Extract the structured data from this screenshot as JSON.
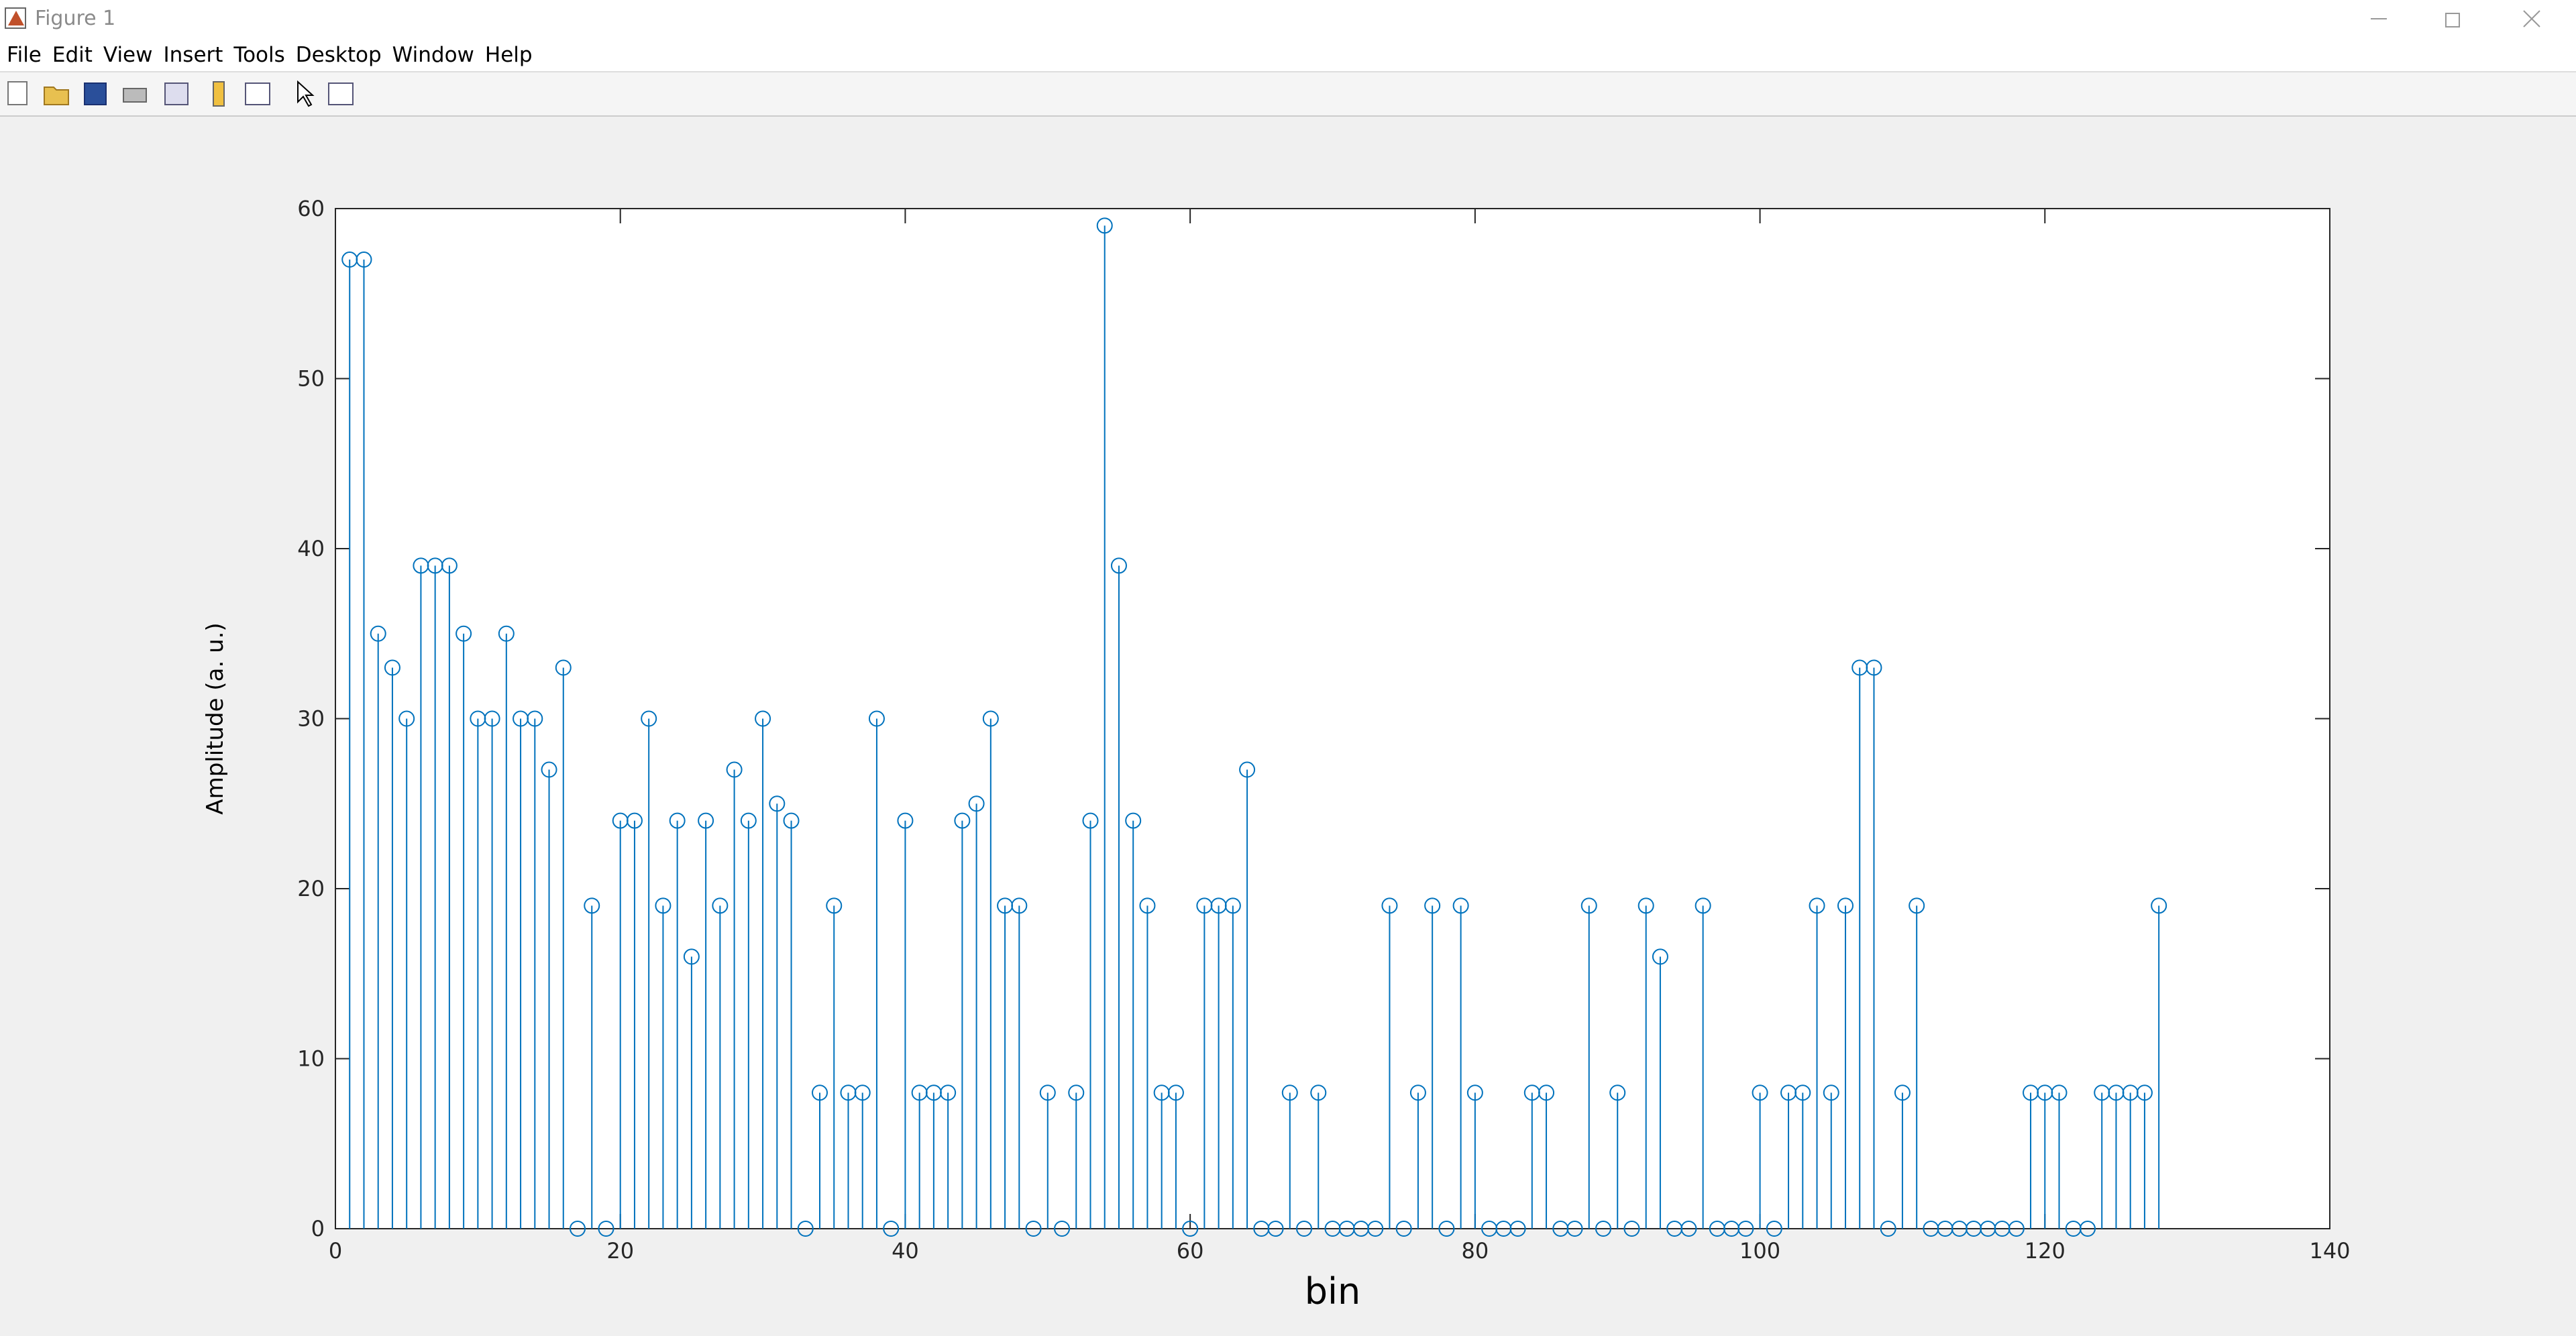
{
  "window": {
    "title": "Figure 1",
    "menu": [
      "File",
      "Edit",
      "View",
      "Insert",
      "Tools",
      "Desktop",
      "Window",
      "Help"
    ]
  },
  "chart_data": {
    "type": "stem",
    "xlabel": "bin",
    "ylabel": "Amplitude (a. u.)",
    "color": "#0072bd",
    "x": [
      1,
      2,
      3,
      4,
      5,
      6,
      7,
      8,
      9,
      10,
      11,
      12,
      13,
      14,
      15,
      16,
      17,
      18,
      19,
      20,
      21,
      22,
      23,
      24,
      25,
      26,
      27,
      28,
      29,
      30,
      31,
      32,
      33,
      34,
      35,
      36,
      37,
      38,
      39,
      40,
      41,
      42,
      43,
      44,
      45,
      46,
      47,
      48,
      49,
      50,
      51,
      52,
      53,
      54,
      55,
      56,
      57,
      58,
      59,
      60,
      61,
      62,
      63,
      64,
      65,
      66,
      67,
      68,
      69,
      70,
      71,
      72,
      73,
      74,
      75,
      76,
      77,
      78,
      79,
      80,
      81,
      82,
      83,
      84,
      85,
      86,
      87,
      88,
      89,
      90,
      91,
      92,
      93,
      94,
      95,
      96,
      97,
      98,
      99,
      100,
      101,
      102,
      103,
      104,
      105,
      106,
      107,
      108,
      109,
      110,
      111,
      112,
      113,
      114,
      115,
      116,
      117,
      118,
      119,
      120,
      121,
      122,
      123,
      124,
      125,
      126,
      127,
      128
    ],
    "values": [
      57,
      57,
      35,
      33,
      30,
      39,
      39,
      39,
      35,
      30,
      30,
      35,
      30,
      30,
      27,
      33,
      0,
      19,
      0,
      24,
      24,
      30,
      19,
      24,
      16,
      24,
      19,
      27,
      24,
      30,
      25,
      24,
      0,
      8,
      19,
      8,
      8,
      30,
      0,
      24,
      8,
      8,
      8,
      24,
      25,
      30,
      19,
      19,
      0,
      8,
      0,
      8,
      24,
      59,
      39,
      24,
      19,
      8,
      8,
      0,
      19,
      19,
      19,
      27,
      0,
      0,
      8,
      0,
      8,
      0,
      0,
      0,
      0,
      19,
      0,
      8,
      19,
      0,
      19,
      8,
      0,
      0,
      0,
      8,
      8,
      0,
      0,
      19,
      0,
      8,
      0,
      19,
      16,
      0,
      0,
      19,
      0,
      0,
      0,
      8,
      0,
      8,
      8,
      19,
      8,
      19,
      33,
      33,
      0,
      8,
      19,
      0,
      0,
      0,
      0,
      0,
      0,
      0,
      8,
      8,
      8,
      0,
      0,
      8,
      8,
      8,
      8,
      19
    ],
    "xlim": [
      0,
      140
    ],
    "ylim": [
      0,
      60
    ],
    "xticks": [
      0,
      20,
      40,
      60,
      80,
      100,
      120,
      140
    ],
    "yticks": [
      0,
      10,
      20,
      30,
      40,
      50,
      60
    ]
  }
}
